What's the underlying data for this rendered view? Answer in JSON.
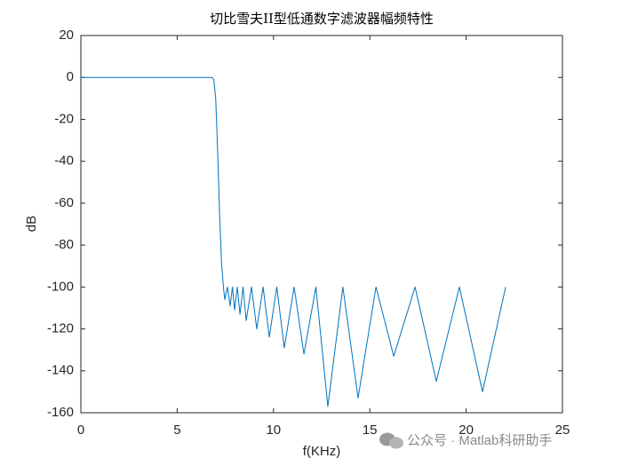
{
  "chart_data": {
    "type": "line",
    "title": "切比雪夫II型低通数字滤波器幅频特性",
    "x_label": "f(KHz)",
    "y_label": "dB",
    "watermark": "公众号 · Matlab科研助手",
    "x": [
      0,
      6.8,
      6.9,
      7.0,
      7.1,
      7.2,
      7.3,
      7.4,
      7.47,
      7.61,
      7.75,
      7.87,
      7.98,
      8.12,
      8.26,
      8.42,
      8.58,
      8.86,
      9.13,
      9.46,
      9.78,
      10.17,
      10.56,
      11.07,
      11.58,
      12.2,
      12.82,
      13.6,
      14.39,
      15.32,
      16.24,
      17.35,
      18.45,
      19.65,
      20.85,
      22.05
    ],
    "series": [
      {
        "color": "#0072BD",
        "values": [
          0,
          0,
          -1,
          -10,
          -35,
          -65,
          -88,
          -100,
          -106,
          -100,
          -109,
          -100,
          -111,
          -100,
          -113,
          -100,
          -116,
          -100,
          -120,
          -100,
          -124,
          -100,
          -129,
          -100,
          -132,
          -100,
          -157,
          -100,
          -153,
          -100,
          -133,
          -100,
          -145,
          -100,
          -150,
          -100
        ]
      }
    ],
    "xlim": [
      0,
      25
    ],
    "xticks": [
      0,
      5,
      10,
      15,
      20,
      25
    ],
    "ylim": [
      -160,
      20
    ],
    "yticks": [
      -160,
      -140,
      -120,
      -100,
      -80,
      -60,
      -40,
      -20,
      0,
      20
    ],
    "grid": false
  }
}
